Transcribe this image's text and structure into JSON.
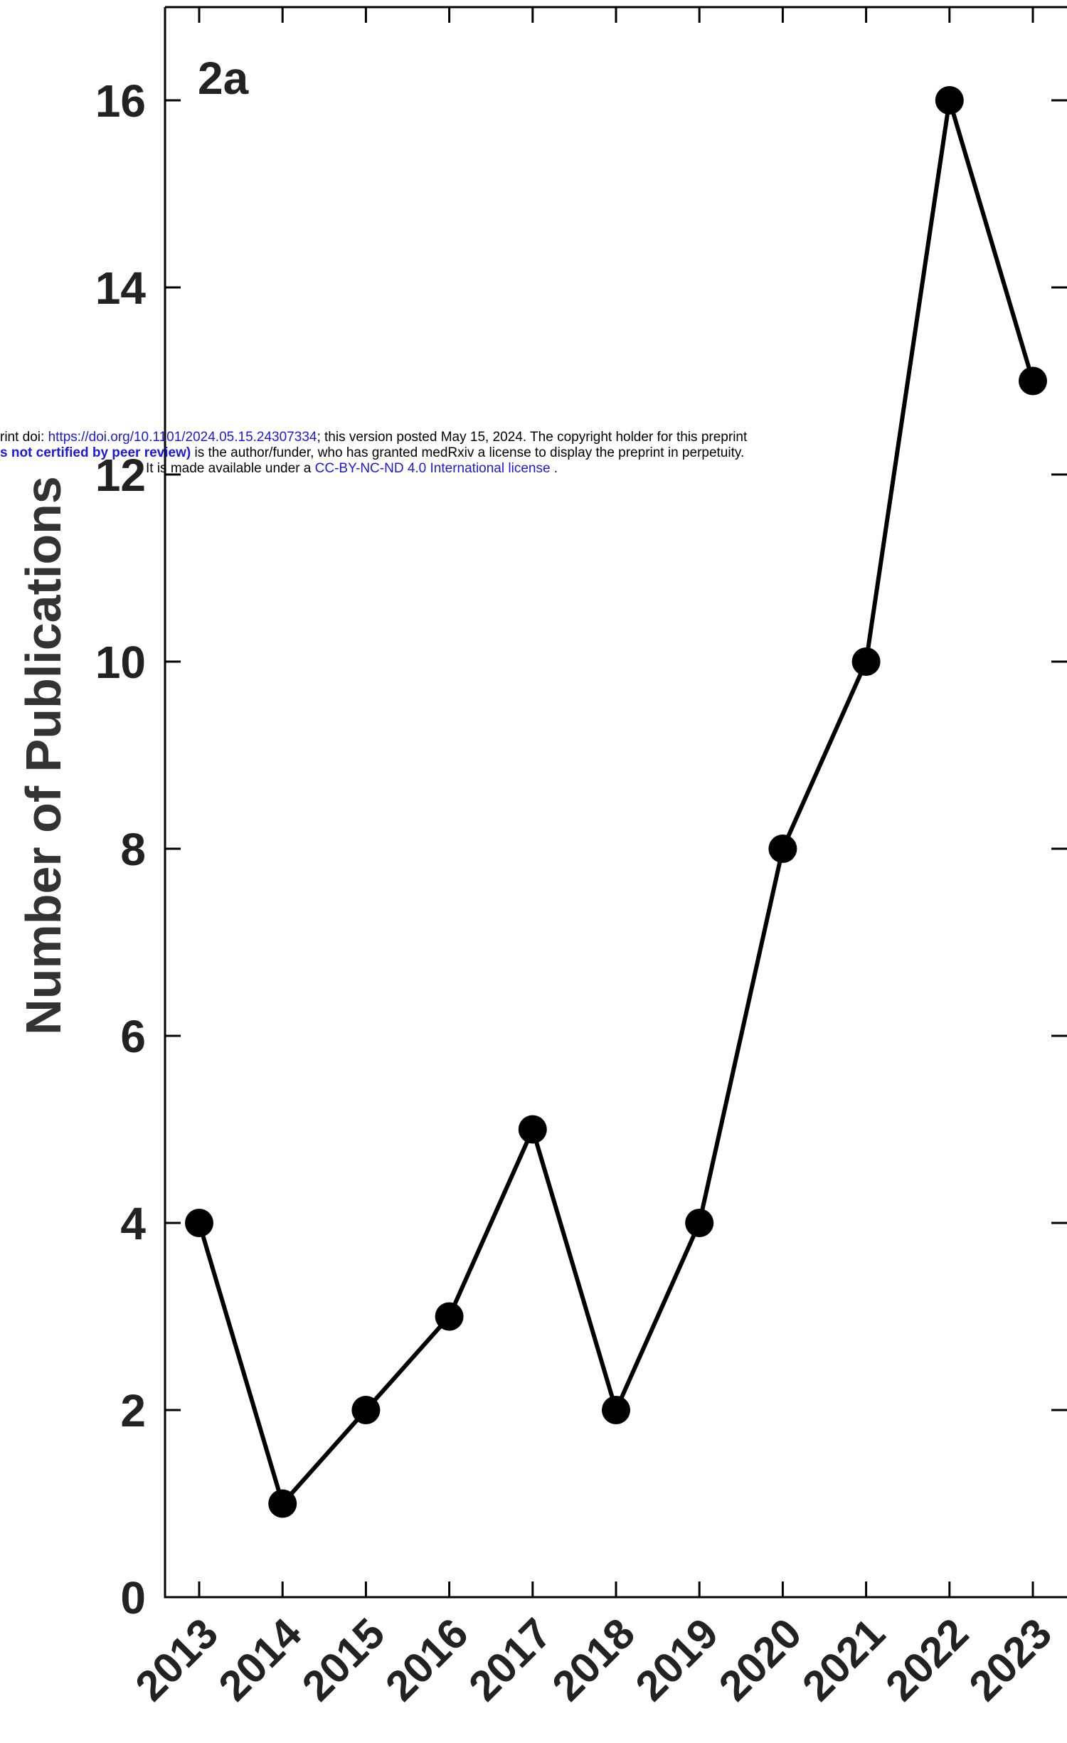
{
  "chart_data": {
    "type": "line",
    "panel_label": "2a",
    "ylabel": "Number of Publications",
    "xlabel": "",
    "categories": [
      "2013",
      "2014",
      "2015",
      "2016",
      "2017",
      "2018",
      "2019",
      "2020",
      "2021",
      "2022",
      "2023"
    ],
    "series": [
      {
        "values": [
          4,
          1,
          2,
          3,
          5,
          2,
          4,
          8,
          10,
          16,
          13
        ]
      }
    ],
    "ylim": [
      0,
      17
    ],
    "yticks": [
      0,
      2,
      4,
      6,
      8,
      10,
      12,
      14,
      16
    ],
    "grid": false,
    "legend": "none",
    "colors": {
      "line": "#000000",
      "marker": "#000000",
      "axis": "#000000",
      "text": "#222222"
    }
  },
  "notice": {
    "line1_prefix": "rint doi: ",
    "line1_link": "https://doi.org/10.1101/2024.05.15.24307334",
    "line1_suffix": "; this version posted May 15, 2024. The copyright holder for this preprint",
    "line2_bold": "s not certified by peer review)",
    "line2_suffix": " is the author/funder, who has granted medRxiv a license to display the preprint in perpetuity.",
    "line3_prefix": "It is made available under a ",
    "line3_link": "CC-BY-NC-ND 4.0 International license",
    "line3_suffix": " ."
  }
}
